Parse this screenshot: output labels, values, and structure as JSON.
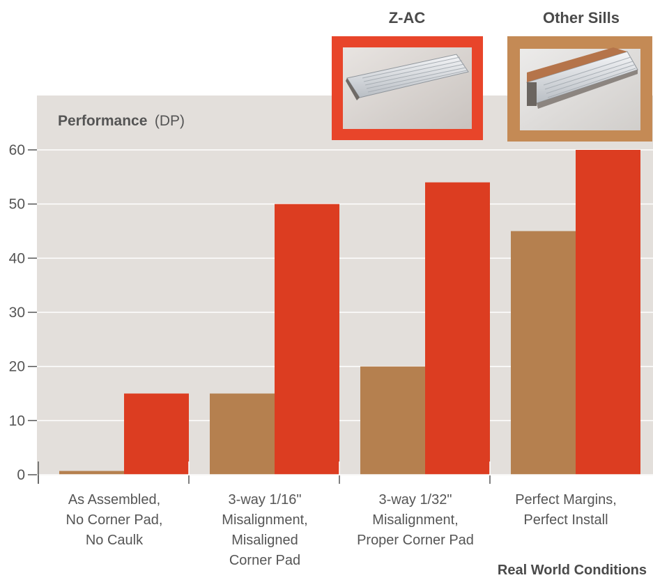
{
  "chart_data": {
    "type": "bar",
    "title": "",
    "ylabel": "Performance",
    "ylabel_unit": "(DP)",
    "xlabel": "Real World Conditions",
    "ylim": [
      0,
      60
    ],
    "yticks": [
      0,
      10,
      20,
      30,
      40,
      50,
      60
    ],
    "grid": true,
    "categories": [
      [
        "As Assembled,",
        "No Corner Pad,",
        "No Caulk"
      ],
      [
        "3-way 1/16\"",
        "Misalignment,",
        "Misaligned",
        "Corner Pad"
      ],
      [
        "3-way 1/32\"",
        "Misalignment,",
        "Proper Corner Pad"
      ],
      [
        "Perfect Margins,",
        "Perfect Install"
      ]
    ],
    "series": [
      {
        "name": "Other Sills",
        "color": "#b5804f",
        "values": [
          0.7,
          15,
          20,
          45
        ]
      },
      {
        "name": "Z-AC",
        "color": "#dc3d21",
        "values": [
          15,
          50,
          54,
          60
        ]
      }
    ],
    "legend": [
      {
        "name": "Z-AC",
        "frame_color": "#e8452a",
        "image_icon": "aluminum-sill-photo-icon"
      },
      {
        "name": "Other Sills",
        "frame_color": "#c48a55",
        "image_icon": "sill-with-wood-core-photo-icon"
      }
    ],
    "colors": {
      "plot_background": "#e3dfdb",
      "gridline": "#ffffff",
      "axis": "#555555"
    }
  }
}
